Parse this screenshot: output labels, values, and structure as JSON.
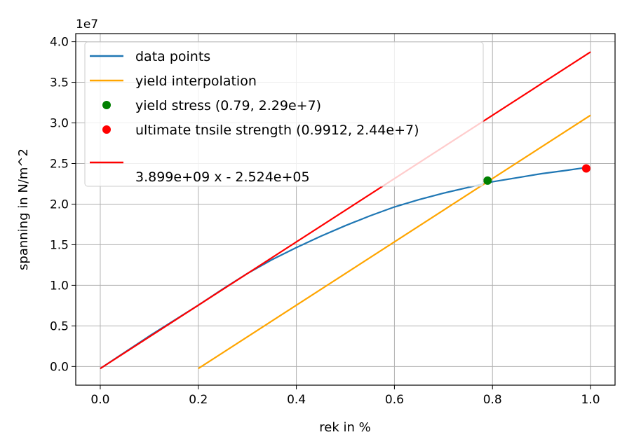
{
  "chart_data": {
    "type": "line",
    "xlabel": "rek in %",
    "ylabel": "spanning in N/m^2",
    "y_offset_label": "1e7",
    "xlim": [
      -0.05,
      1.05
    ],
    "ylim": [
      -2300000,
      41000000
    ],
    "x_ticks": [
      0.0,
      0.2,
      0.4,
      0.6,
      0.8,
      1.0
    ],
    "x_tick_labels": [
      "0.0",
      "0.2",
      "0.4",
      "0.6",
      "0.8",
      "1.0"
    ],
    "y_ticks": [
      0,
      5000000,
      10000000,
      15000000,
      20000000,
      25000000,
      30000000,
      35000000,
      40000000
    ],
    "y_tick_labels": [
      "0.0",
      "0.5",
      "1.0",
      "1.5",
      "2.0",
      "2.5",
      "3.0",
      "3.5",
      "4.0"
    ],
    "grid": true,
    "legend_position": "upper-left",
    "series": [
      {
        "name": "data points",
        "kind": "line",
        "color": "#1f77b4",
        "x": [
          0.0,
          0.1,
          0.2,
          0.25,
          0.3,
          0.35,
          0.4,
          0.45,
          0.5,
          0.55,
          0.6,
          0.65,
          0.7,
          0.75,
          0.8,
          0.85,
          0.9,
          0.95,
          0.99
        ],
        "y": [
          -250000,
          3750000,
          7550000,
          9550000,
          11450000,
          13150000,
          14650000,
          16050000,
          17350000,
          18550000,
          19650000,
          20550000,
          21350000,
          22050000,
          22750000,
          23250000,
          23750000,
          24150000,
          24500000
        ]
      },
      {
        "name": "yield interpolation",
        "kind": "line",
        "color": "#ffa500",
        "x": [
          0.2,
          1.0
        ],
        "y": [
          -250000,
          30950000
        ]
      },
      {
        "name": "yield stress (0.79, 2.29e+7)",
        "kind": "scatter",
        "color": "#008000",
        "x": [
          0.79
        ],
        "y": [
          22900000
        ]
      },
      {
        "name": "ultimate tnsile strength (0.9912, 2.44e+7)",
        "kind": "scatter",
        "color": "#ff0000",
        "x": [
          0.9912
        ],
        "y": [
          24400000
        ]
      },
      {
        "name": "3.899e+09 x - 2.524e+05",
        "kind": "line",
        "color": "#ff0000",
        "x": [
          0.0,
          1.0
        ],
        "y": [
          -252400,
          38737600
        ]
      }
    ],
    "legend_entries": [
      {
        "label": "data points",
        "kind": "line",
        "color": "#1f77b4"
      },
      {
        "label": "yield interpolation",
        "kind": "line",
        "color": "#ffa500"
      },
      {
        "label": "yield stress (0.79, 2.29e+7)",
        "kind": "scatter",
        "color": "#008000"
      },
      {
        "label": "ultimate tnsile strength (0.9912, 2.44e+7)",
        "kind": "scatter",
        "color": "#ff0000"
      },
      {
        "label": "3.899e+09 x - 2.524e+05",
        "kind": "line",
        "color": "#ff0000",
        "multiline": true
      }
    ]
  }
}
